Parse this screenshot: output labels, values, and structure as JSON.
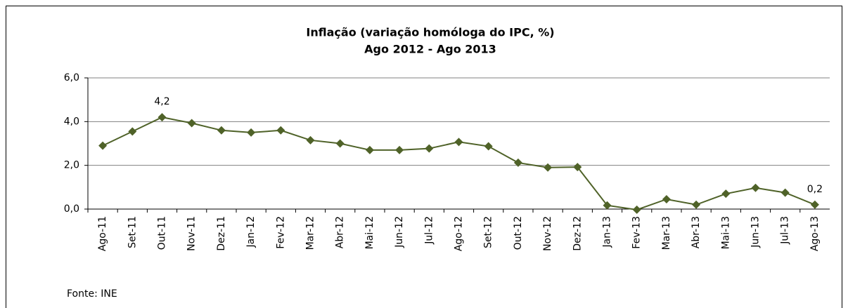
{
  "chart_data": {
    "type": "line",
    "title": "Inflação  (variação homóloga do IPC, %)",
    "subtitle": "Ago 2012 - Ago 2013",
    "source": "Fonte: INE",
    "categories": [
      "Ago-11",
      "Set-11",
      "Out-11",
      "Nov-11",
      "Dez-11",
      "Jan-12",
      "Fev-12",
      "Mar-12",
      "Abr-12",
      "Mai-12",
      "Jun-12",
      "Jul-12",
      "Ago-12",
      "Set-12",
      "Out-12",
      "Nov-12",
      "Dez-12",
      "Jan-13",
      "Fev-13",
      "Mar-13",
      "Abr-13",
      "Mai-13",
      "Jun-13",
      "Jul-13",
      "Ago-13"
    ],
    "values": [
      2.9,
      3.55,
      4.2,
      3.93,
      3.6,
      3.5,
      3.6,
      3.15,
      3.0,
      2.7,
      2.7,
      2.77,
      3.07,
      2.87,
      2.12,
      1.9,
      1.92,
      0.17,
      -0.03,
      0.45,
      0.2,
      0.7,
      0.97,
      0.75,
      0.2
    ],
    "value_labels": [
      null,
      null,
      "4,2",
      null,
      null,
      null,
      null,
      null,
      null,
      null,
      null,
      null,
      null,
      null,
      null,
      null,
      null,
      null,
      null,
      null,
      null,
      null,
      null,
      null,
      "0,2"
    ],
    "color": "#4f6228",
    "ylim": [
      0,
      6
    ],
    "yticks": [
      {
        "value": 0,
        "label": "0,0"
      },
      {
        "value": 2,
        "label": "2,0"
      },
      {
        "value": 4,
        "label": "4,0"
      },
      {
        "value": 6,
        "label": "6,0"
      }
    ],
    "grid": true
  }
}
